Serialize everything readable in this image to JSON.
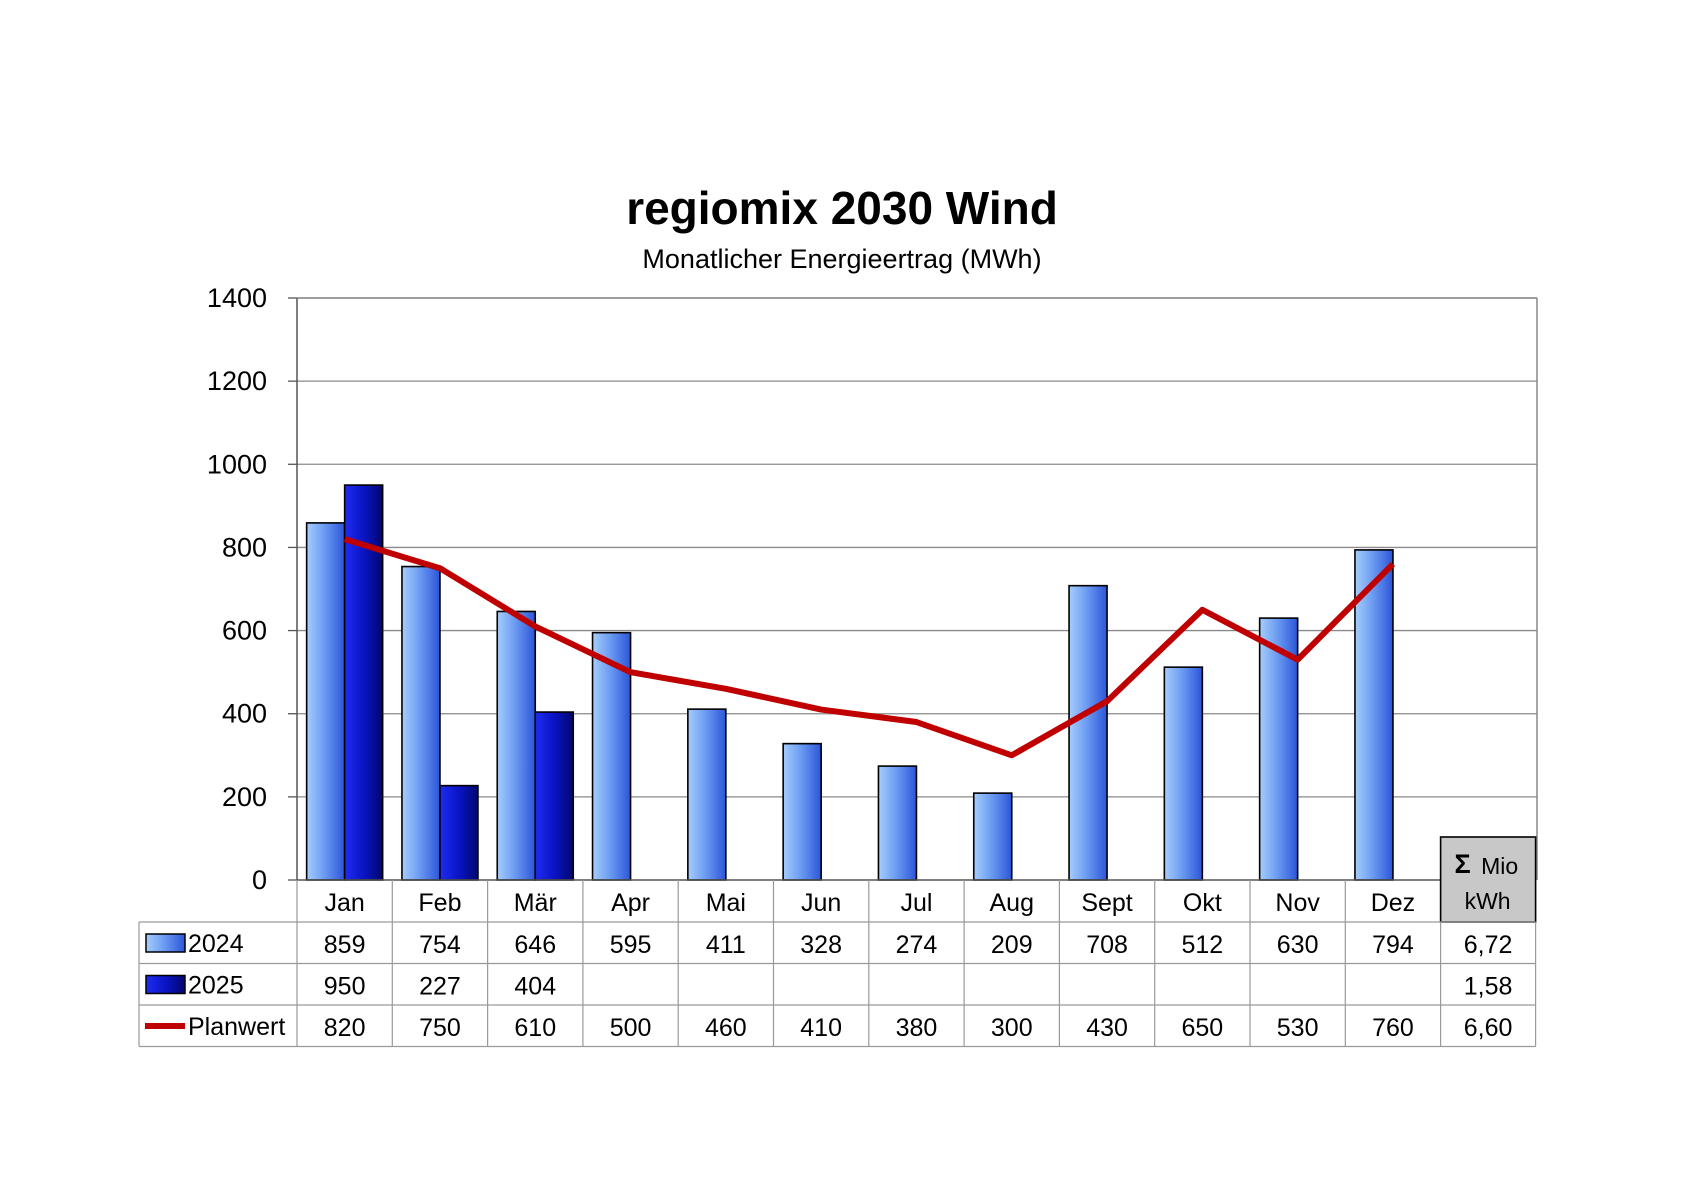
{
  "chart_data": {
    "type": "bar",
    "title": "regiomix 2030 Wind",
    "subtitle": "Monatlicher Energieertrag (MWh)",
    "categories": [
      "Jan",
      "Feb",
      "Mär",
      "Apr",
      "Mai",
      "Jun",
      "Jul",
      "Aug",
      "Sept",
      "Okt",
      "Nov",
      "Dez"
    ],
    "ylim": [
      0,
      1400
    ],
    "yticks": [
      "0",
      "200",
      "400",
      "600",
      "800",
      "1000",
      "1200",
      "1400"
    ],
    "grid": true,
    "series": [
      {
        "name": "2024",
        "kind": "bar",
        "values": [
          859,
          754,
          646,
          595,
          411,
          328,
          274,
          209,
          708,
          512,
          630,
          794
        ],
        "total": "6,72",
        "color": "#5b8ff0"
      },
      {
        "name": "2025",
        "kind": "bar",
        "values": [
          950,
          227,
          404,
          null,
          null,
          null,
          null,
          null,
          null,
          null,
          null,
          null
        ],
        "total": "1,58",
        "color": "#0a14c8"
      },
      {
        "name": "Planwert",
        "kind": "line",
        "values": [
          820,
          750,
          610,
          500,
          460,
          410,
          380,
          300,
          430,
          650,
          530,
          760
        ],
        "total": "6,60",
        "color": "#c00000"
      }
    ],
    "sum_header": {
      "symbol": "Σ",
      "line1": "Mio",
      "line2": "kWh"
    },
    "legend_placement": "data-table"
  }
}
